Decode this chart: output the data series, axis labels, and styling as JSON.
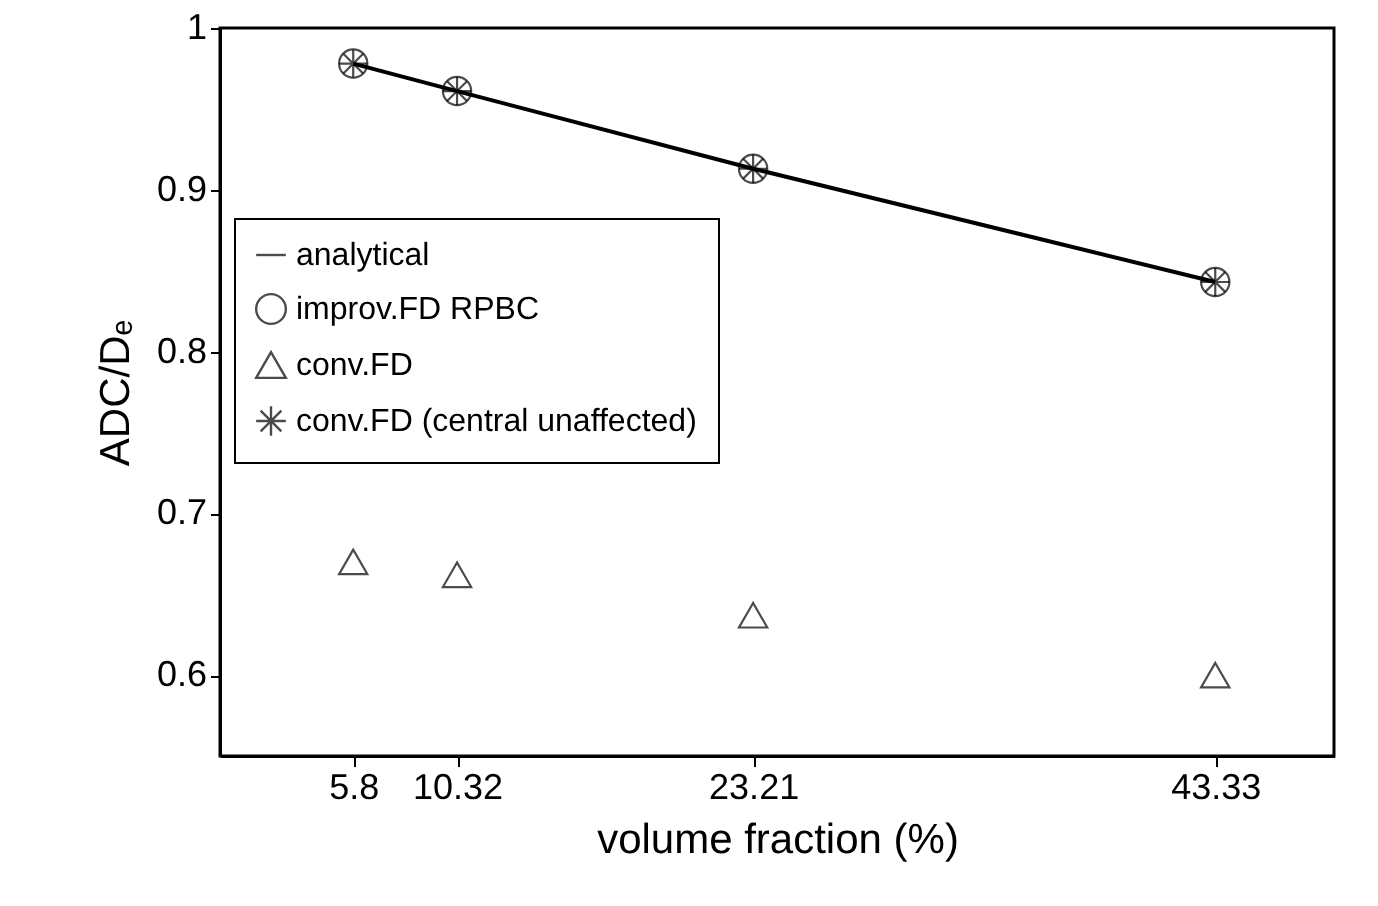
{
  "chart_data": {
    "type": "scatter",
    "xlabel": "volume fraction (%)",
    "ylabel": "ADC/Dₑ",
    "x": [
      5.8,
      10.32,
      23.21,
      43.33
    ],
    "xlim": [
      0,
      48.5
    ],
    "xticks": [
      5.8,
      10.32,
      23.21,
      43.33
    ],
    "ylim": [
      0.55,
      1
    ],
    "yticks": [
      0.6,
      0.7,
      0.8,
      0.9,
      1
    ],
    "grid": false,
    "legend": "top left",
    "series": [
      {
        "name": "analytical",
        "type": "line",
        "color": "#000000",
        "marker": "none",
        "line_style": "solid",
        "values": [
          0.978,
          0.961,
          0.913,
          0.843
        ]
      },
      {
        "name": "improv.FD RPBC",
        "color": "#000000",
        "marker": "circle",
        "values": [
          0.978,
          0.961,
          0.913,
          0.843
        ]
      },
      {
        "name": "conv.FD",
        "color": "#000000",
        "marker": "triangle",
        "values": [
          0.67,
          0.662,
          0.637,
          0.6
        ]
      },
      {
        "name": "conv.FD (central unaffected)",
        "color": "#000000",
        "marker": "cross",
        "values": [
          0.978,
          0.961,
          0.913,
          0.843
        ]
      }
    ]
  }
}
